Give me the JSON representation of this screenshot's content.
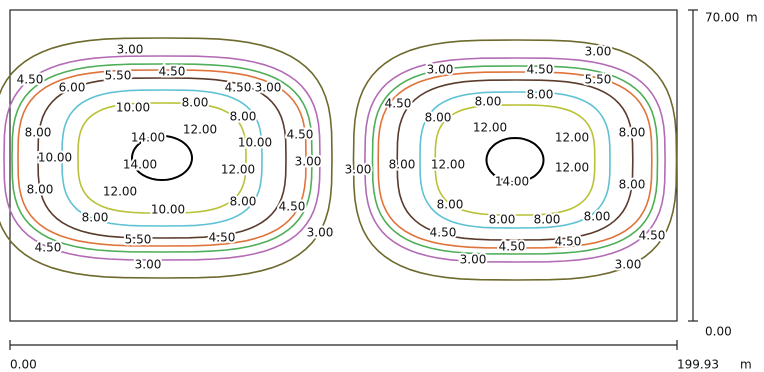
{
  "chart_data": {
    "type": "contour",
    "levels": [
      3,
      4.5,
      5.5,
      6,
      8,
      10,
      12,
      14
    ],
    "value_labels": [
      "3.00",
      "4.50",
      "5.50",
      "6.00",
      "8.00",
      "10.00",
      "12.00",
      "14.00"
    ],
    "colors": [
      "#6e6a2e",
      "#b36bb5",
      "#4fae58",
      "#e0733a",
      "#5a3b2c",
      "#5fc2d4",
      "#b9c236",
      "#000000"
    ],
    "xlim": [
      0,
      199.93
    ],
    "xticks": [
      {
        "value": 0,
        "label": "0.00"
      },
      {
        "value": 199.93,
        "label": "199.93"
      }
    ],
    "ylim": [
      0,
      70
    ],
    "yticks": [
      {
        "value": 0,
        "label": "0.00"
      },
      {
        "value": 70,
        "label": "70.00"
      }
    ],
    "x_unit": "m",
    "y_unit": "m"
  }
}
